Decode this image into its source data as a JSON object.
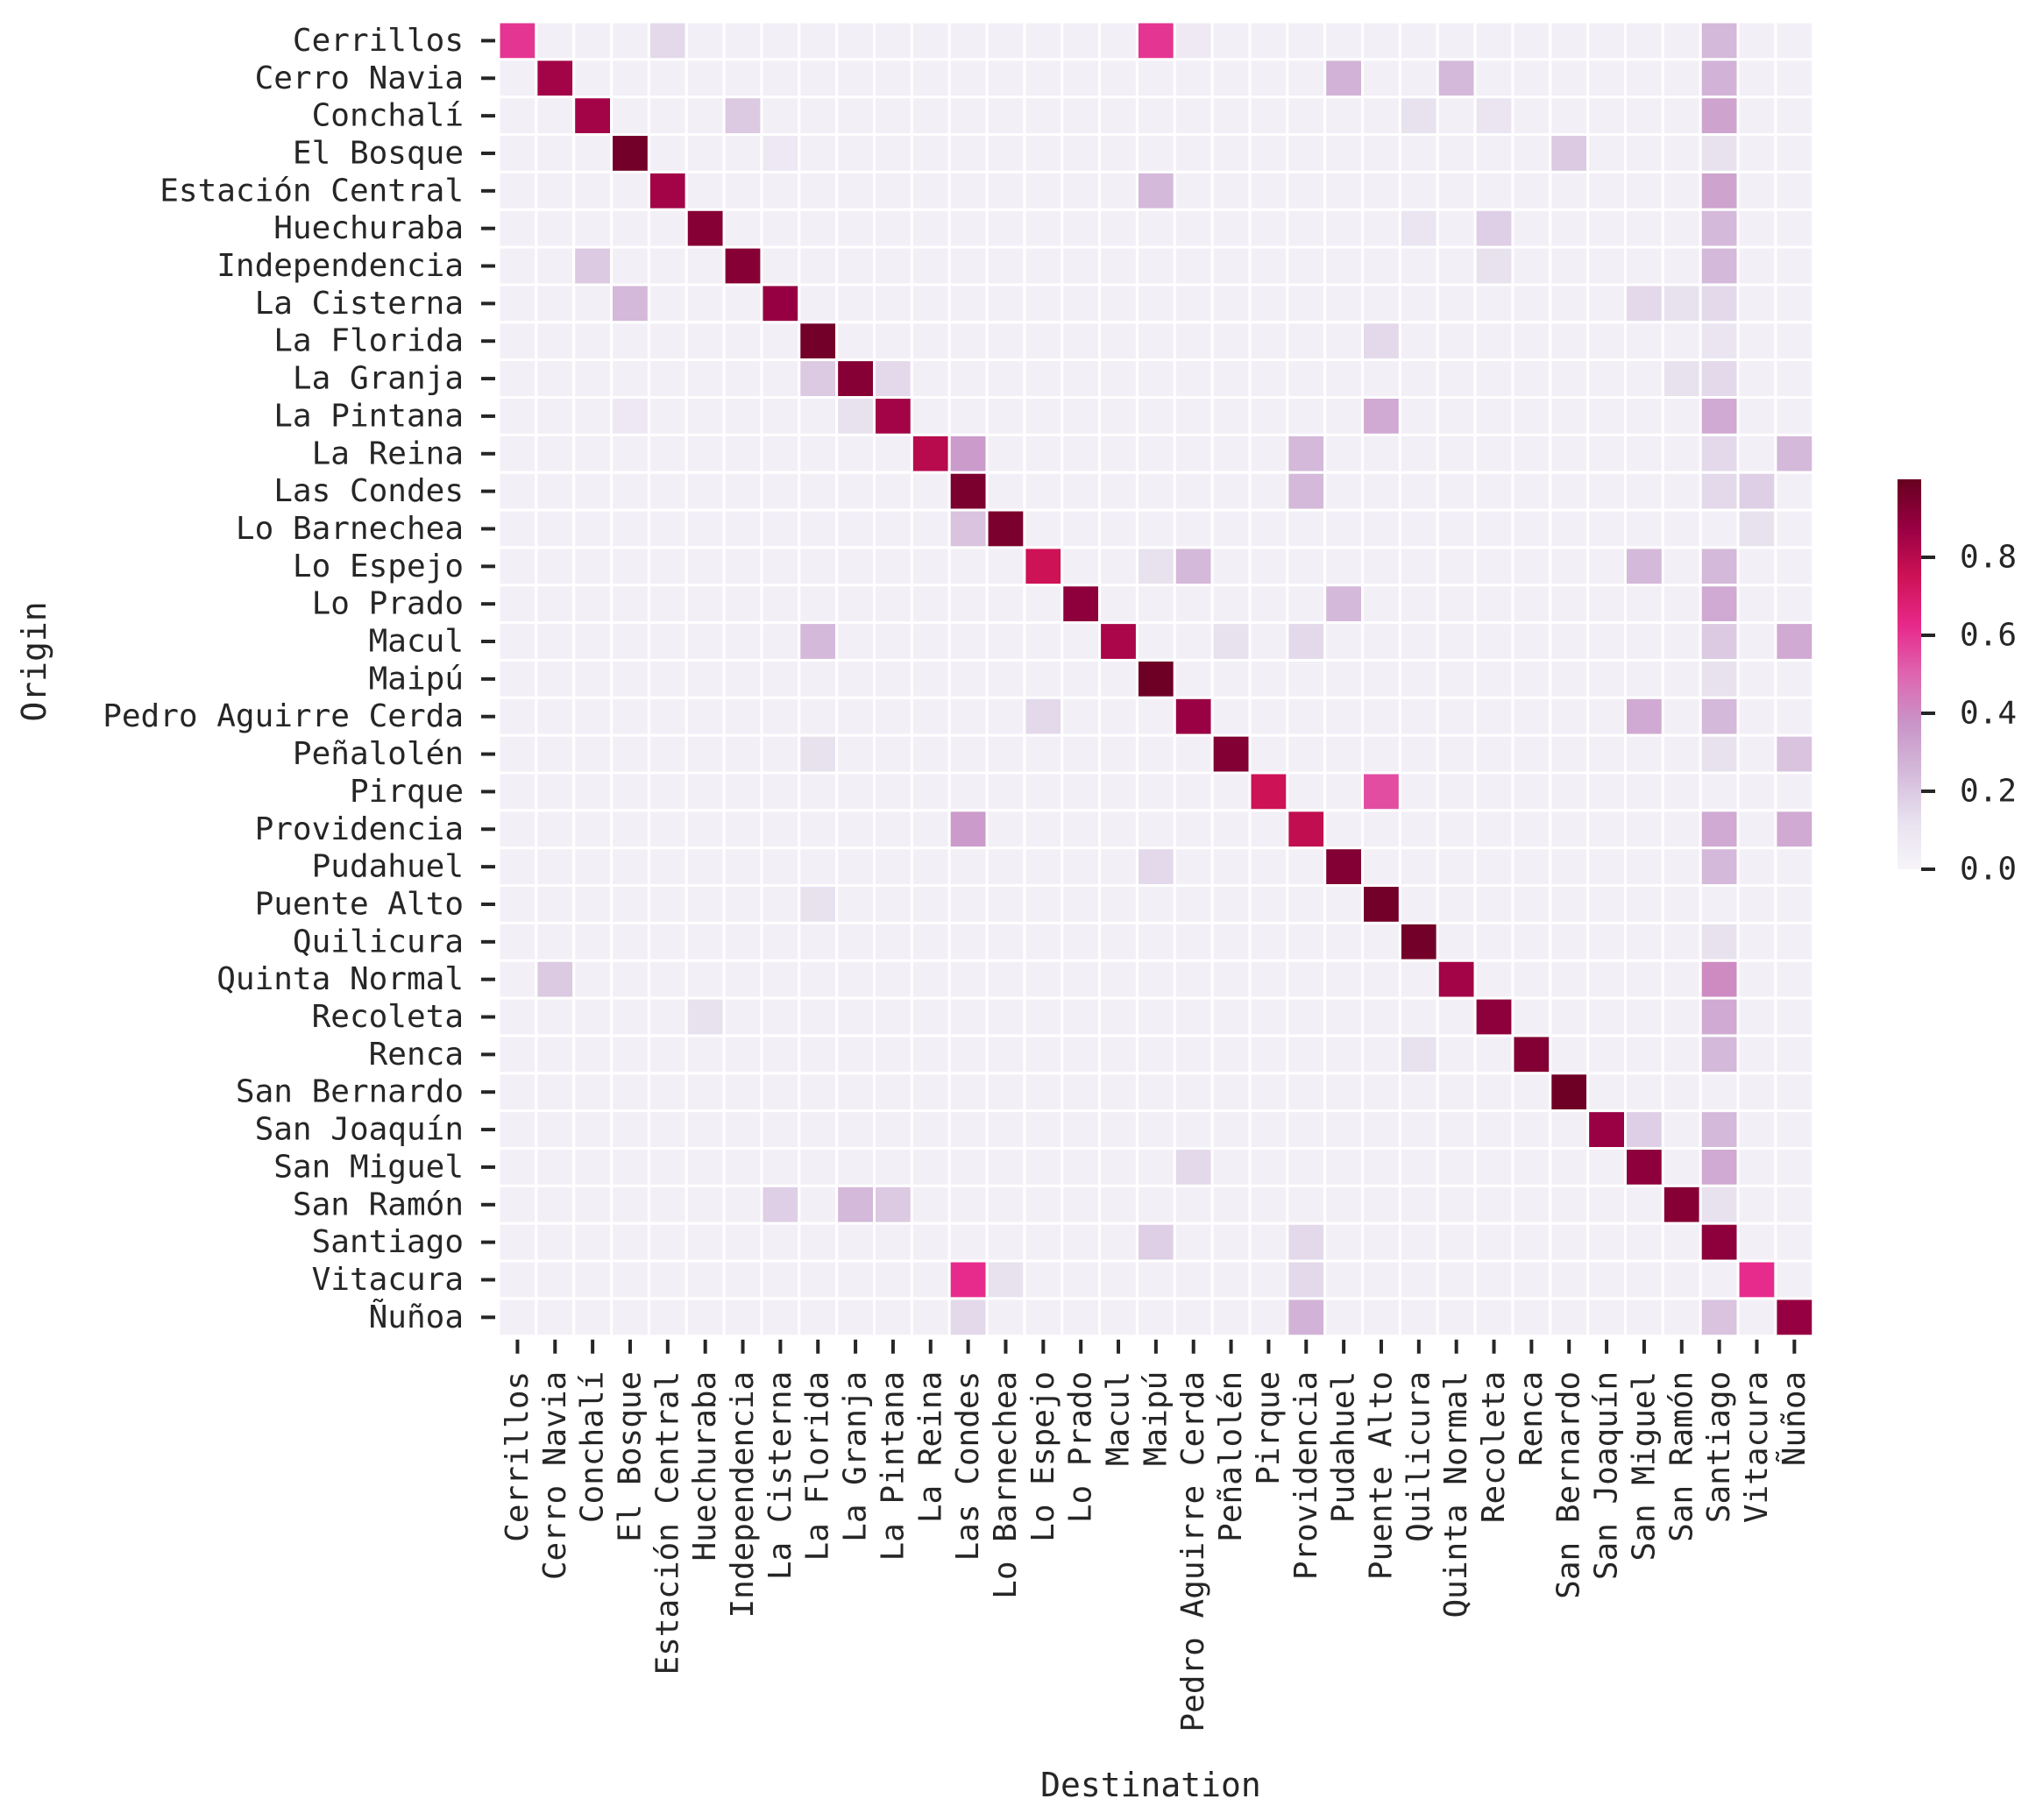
{
  "chart_data": {
    "type": "heatmap",
    "title": "",
    "xlabel": "Destination",
    "ylabel": "Origin",
    "colormap": "PuRd",
    "value_range": [
      0,
      1
    ],
    "colorbar_ticks": [
      0.0,
      0.2,
      0.4,
      0.6,
      0.8
    ],
    "colorbar_tick_labels": [
      "0.0",
      "0.2",
      "0.4",
      "0.6",
      "0.8"
    ],
    "categories": [
      "Cerrillos",
      "Cerro Navia",
      "Conchalí",
      "El Bosque",
      "Estación Central",
      "Huechuraba",
      "Independencia",
      "La Cisterna",
      "La Florida",
      "La Granja",
      "La Pintana",
      "La Reina",
      "Las Condes",
      "Lo Barnechea",
      "Lo Espejo",
      "Lo Prado",
      "Macul",
      "Maipú",
      "Pedro Aguirre Cerda",
      "Peñalolén",
      "Pirque",
      "Providencia",
      "Pudahuel",
      "Puente Alto",
      "Quilicura",
      "Quinta Normal",
      "Recoleta",
      "Renca",
      "San Bernardo",
      "San Joaquín",
      "San Miguel",
      "San Ramón",
      "Santiago",
      "Vitacura",
      "Ñuñoa"
    ],
    "diagonal": [
      0.6,
      0.85,
      0.85,
      0.97,
      0.85,
      0.92,
      0.92,
      0.88,
      0.97,
      0.92,
      0.85,
      0.8,
      0.95,
      0.95,
      0.75,
      0.9,
      0.83,
      0.98,
      0.87,
      0.93,
      0.75,
      0.78,
      0.93,
      0.97,
      0.97,
      0.85,
      0.9,
      0.93,
      0.98,
      0.87,
      0.9,
      0.92,
      0.9,
      0.62,
      0.88
    ],
    "background_value": 0.03,
    "notable_cells": [
      {
        "origin": "Cerrillos",
        "destination": "Estación Central",
        "value": 0.15
      },
      {
        "origin": "Cerrillos",
        "destination": "Maipú",
        "value": 0.6
      },
      {
        "origin": "Cerrillos",
        "destination": "Pedro Aguirre Cerda",
        "value": 0.07
      },
      {
        "origin": "Cerrillos",
        "destination": "Santiago",
        "value": 0.25
      },
      {
        "origin": "Cerro Navia",
        "destination": "Pudahuel",
        "value": 0.27
      },
      {
        "origin": "Cerro Navia",
        "destination": "Quinta Normal",
        "value": 0.25
      },
      {
        "origin": "Cerro Navia",
        "destination": "Santiago",
        "value": 0.27
      },
      {
        "origin": "Conchalí",
        "destination": "Independencia",
        "value": 0.2
      },
      {
        "origin": "Conchalí",
        "destination": "Quilicura",
        "value": 0.12
      },
      {
        "origin": "Conchalí",
        "destination": "Recoleta",
        "value": 0.1
      },
      {
        "origin": "Conchalí",
        "destination": "Santiago",
        "value": 0.32
      },
      {
        "origin": "El Bosque",
        "destination": "La Cisterna",
        "value": 0.08
      },
      {
        "origin": "El Bosque",
        "destination": "San Bernardo",
        "value": 0.2
      },
      {
        "origin": "El Bosque",
        "destination": "Santiago",
        "value": 0.12
      },
      {
        "origin": "Estación Central",
        "destination": "Maipú",
        "value": 0.25
      },
      {
        "origin": "Estación Central",
        "destination": "Santiago",
        "value": 0.32
      },
      {
        "origin": "Huechuraba",
        "destination": "Quilicura",
        "value": 0.1
      },
      {
        "origin": "Huechuraba",
        "destination": "Recoleta",
        "value": 0.18
      },
      {
        "origin": "Huechuraba",
        "destination": "Santiago",
        "value": 0.25
      },
      {
        "origin": "Independencia",
        "destination": "Conchalí",
        "value": 0.2
      },
      {
        "origin": "Independencia",
        "destination": "Recoleta",
        "value": 0.12
      },
      {
        "origin": "Independencia",
        "destination": "Santiago",
        "value": 0.25
      },
      {
        "origin": "La Cisterna",
        "destination": "El Bosque",
        "value": 0.25
      },
      {
        "origin": "La Cisterna",
        "destination": "San Miguel",
        "value": 0.15
      },
      {
        "origin": "La Cisterna",
        "destination": "San Ramón",
        "value": 0.12
      },
      {
        "origin": "La Cisterna",
        "destination": "Santiago",
        "value": 0.15
      },
      {
        "origin": "La Florida",
        "destination": "Puente Alto",
        "value": 0.15
      },
      {
        "origin": "La Florida",
        "destination": "Santiago",
        "value": 0.1
      },
      {
        "origin": "La Granja",
        "destination": "La Florida",
        "value": 0.2
      },
      {
        "origin": "La Granja",
        "destination": "La Pintana",
        "value": 0.15
      },
      {
        "origin": "La Granja",
        "destination": "San Ramón",
        "value": 0.12
      },
      {
        "origin": "La Granja",
        "destination": "Santiago",
        "value": 0.15
      },
      {
        "origin": "La Pintana",
        "destination": "El Bosque",
        "value": 0.08
      },
      {
        "origin": "La Pintana",
        "destination": "La Granja",
        "value": 0.12
      },
      {
        "origin": "La Pintana",
        "destination": "Puente Alto",
        "value": 0.3
      },
      {
        "origin": "La Pintana",
        "destination": "Santiago",
        "value": 0.3
      },
      {
        "origin": "La Reina",
        "destination": "Las Condes",
        "value": 0.35
      },
      {
        "origin": "La Reina",
        "destination": "Providencia",
        "value": 0.25
      },
      {
        "origin": "La Reina",
        "destination": "Santiago",
        "value": 0.15
      },
      {
        "origin": "La Reina",
        "destination": "Ñuñoa",
        "value": 0.25
      },
      {
        "origin": "Las Condes",
        "destination": "Providencia",
        "value": 0.25
      },
      {
        "origin": "Las Condes",
        "destination": "Santiago",
        "value": 0.15
      },
      {
        "origin": "Las Condes",
        "destination": "Vitacura",
        "value": 0.18
      },
      {
        "origin": "Lo Barnechea",
        "destination": "Las Condes",
        "value": 0.22
      },
      {
        "origin": "Lo Barnechea",
        "destination": "Vitacura",
        "value": 0.12
      },
      {
        "origin": "Lo Espejo",
        "destination": "Pedro Aguirre Cerda",
        "value": 0.25
      },
      {
        "origin": "Lo Espejo",
        "destination": "San Miguel",
        "value": 0.25
      },
      {
        "origin": "Lo Espejo",
        "destination": "Santiago",
        "value": 0.25
      },
      {
        "origin": "Lo Espejo",
        "destination": "Maipú",
        "value": 0.12
      },
      {
        "origin": "Lo Prado",
        "destination": "Pudahuel",
        "value": 0.25
      },
      {
        "origin": "Lo Prado",
        "destination": "Santiago",
        "value": 0.3
      },
      {
        "origin": "Macul",
        "destination": "La Florida",
        "value": 0.25
      },
      {
        "origin": "Macul",
        "destination": "Peñalolén",
        "value": 0.12
      },
      {
        "origin": "Macul",
        "destination": "Providencia",
        "value": 0.15
      },
      {
        "origin": "Macul",
        "destination": "Santiago",
        "value": 0.2
      },
      {
        "origin": "Macul",
        "destination": "Ñuñoa",
        "value": 0.3
      },
      {
        "origin": "Maipú",
        "destination": "Santiago",
        "value": 0.12
      },
      {
        "origin": "Pedro Aguirre Cerda",
        "destination": "Lo Espejo",
        "value": 0.15
      },
      {
        "origin": "Pedro Aguirre Cerda",
        "destination": "San Miguel",
        "value": 0.3
      },
      {
        "origin": "Pedro Aguirre Cerda",
        "destination": "Santiago",
        "value": 0.25
      },
      {
        "origin": "Peñalolén",
        "destination": "La Florida",
        "value": 0.12
      },
      {
        "origin": "Peñalolén",
        "destination": "Santiago",
        "value": 0.12
      },
      {
        "origin": "Peñalolén",
        "destination": "Ñuñoa",
        "value": 0.22
      },
      {
        "origin": "Pirque",
        "destination": "Puente Alto",
        "value": 0.55
      },
      {
        "origin": "Providencia",
        "destination": "Las Condes",
        "value": 0.35
      },
      {
        "origin": "Providencia",
        "destination": "Santiago",
        "value": 0.3
      },
      {
        "origin": "Providencia",
        "destination": "Ñuñoa",
        "value": 0.3
      },
      {
        "origin": "Pudahuel",
        "destination": "Maipú",
        "value": 0.15
      },
      {
        "origin": "Pudahuel",
        "destination": "Santiago",
        "value": 0.25
      },
      {
        "origin": "Puente Alto",
        "destination": "La Florida",
        "value": 0.12
      },
      {
        "origin": "Quilicura",
        "destination": "Santiago",
        "value": 0.12
      },
      {
        "origin": "Quinta Normal",
        "destination": "Cerro Navia",
        "value": 0.2
      },
      {
        "origin": "Quinta Normal",
        "destination": "Santiago",
        "value": 0.4
      },
      {
        "origin": "Recoleta",
        "destination": "Huechuraba",
        "value": 0.12
      },
      {
        "origin": "Recoleta",
        "destination": "Santiago",
        "value": 0.3
      },
      {
        "origin": "Renca",
        "destination": "Quilicura",
        "value": 0.12
      },
      {
        "origin": "Renca",
        "destination": "Santiago",
        "value": 0.25
      },
      {
        "origin": "San Joaquín",
        "destination": "San Miguel",
        "value": 0.18
      },
      {
        "origin": "San Joaquín",
        "destination": "Santiago",
        "value": 0.25
      },
      {
        "origin": "San Miguel",
        "destination": "Pedro Aguirre Cerda",
        "value": 0.15
      },
      {
        "origin": "San Miguel",
        "destination": "Santiago",
        "value": 0.3
      },
      {
        "origin": "San Ramón",
        "destination": "La Cisterna",
        "value": 0.18
      },
      {
        "origin": "San Ramón",
        "destination": "La Granja",
        "value": 0.25
      },
      {
        "origin": "San Ramón",
        "destination": "La Pintana",
        "value": 0.2
      },
      {
        "origin": "San Ramón",
        "destination": "Santiago",
        "value": 0.12
      },
      {
        "origin": "Santiago",
        "destination": "Maipú",
        "value": 0.18
      },
      {
        "origin": "Santiago",
        "destination": "Providencia",
        "value": 0.15
      },
      {
        "origin": "Vitacura",
        "destination": "Las Condes",
        "value": 0.62
      },
      {
        "origin": "Vitacura",
        "destination": "Lo Barnechea",
        "value": 0.12
      },
      {
        "origin": "Vitacura",
        "destination": "Providencia",
        "value": 0.15
      },
      {
        "origin": "Ñuñoa",
        "destination": "Providencia",
        "value": 0.27
      },
      {
        "origin": "Ñuñoa",
        "destination": "Santiago",
        "value": 0.22
      },
      {
        "origin": "Ñuñoa",
        "destination": "Las Condes",
        "value": 0.15
      }
    ]
  }
}
